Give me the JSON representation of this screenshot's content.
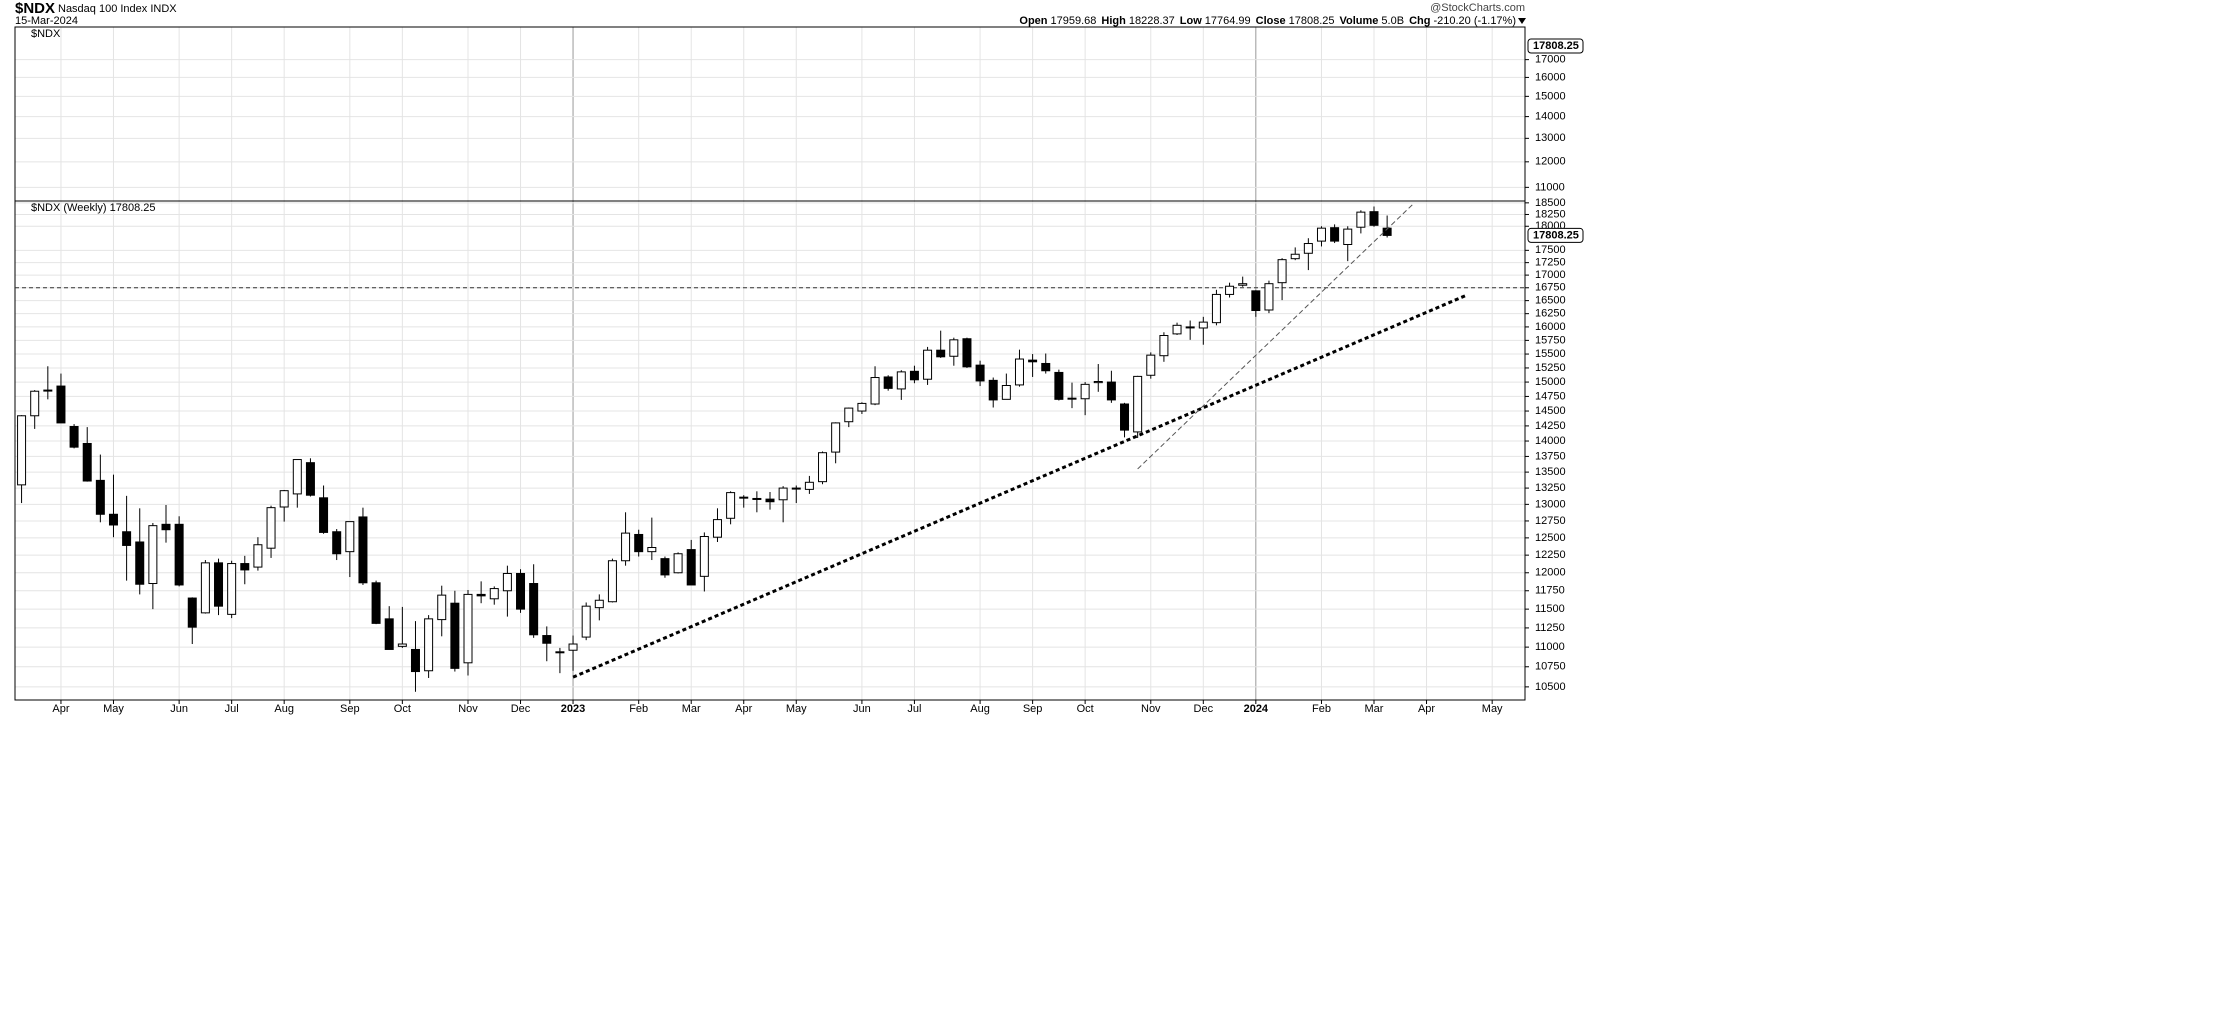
{
  "header": {
    "symbol": "$NDX",
    "name": "Nasdaq 100 Index INDX",
    "date": "15-Mar-2024",
    "source": "@StockCharts.com",
    "quote": [
      {
        "label": "Open",
        "value": "17959.68"
      },
      {
        "label": "High",
        "value": "18228.37"
      },
      {
        "label": "Low",
        "value": "17764.99"
      },
      {
        "label": "Close",
        "value": "17808.25"
      },
      {
        "label": "Volume",
        "value": "5.0B"
      },
      {
        "label": "Chg",
        "value": "-210.20 (-1.17%)"
      }
    ]
  },
  "chart_data": [
    {
      "type": "empty",
      "label": "$NDX",
      "log_scale": true,
      "grid": true,
      "ylim": [
        10500,
        19000
      ],
      "yticks": [
        17000,
        16000,
        15000,
        14000,
        13000,
        12000,
        11000
      ],
      "price_tag": 17808.25
    },
    {
      "type": "candlestick",
      "label": "$NDX (Weekly) 17808.25",
      "log_scale": true,
      "grid": true,
      "up_color": "#ffffff",
      "down_color": "#000000",
      "ylim": [
        10340,
        18540
      ],
      "yticks": [
        18500,
        18250,
        18000,
        17500,
        17250,
        17000,
        16750,
        16500,
        16250,
        16000,
        15750,
        15500,
        15250,
        15000,
        14750,
        14500,
        14250,
        14000,
        13750,
        13500,
        13250,
        13000,
        12750,
        12500,
        12250,
        12000,
        11750,
        11500,
        11250,
        11000,
        10750,
        10500
      ],
      "xlim": [
        -0.5,
        114.5
      ],
      "xticks": [
        {
          "value": 3,
          "label": "Apr"
        },
        {
          "value": 7,
          "label": "May"
        },
        {
          "value": 12,
          "label": "Jun"
        },
        {
          "value": 16,
          "label": "Jul"
        },
        {
          "value": 20,
          "label": "Aug"
        },
        {
          "value": 25,
          "label": "Sep"
        },
        {
          "value": 29,
          "label": "Oct"
        },
        {
          "value": 34,
          "label": "Nov"
        },
        {
          "value": 38,
          "label": "Dec"
        },
        {
          "value": 42,
          "label": "2023"
        },
        {
          "value": 47,
          "label": "Feb"
        },
        {
          "value": 51,
          "label": "Mar"
        },
        {
          "value": 55,
          "label": "Apr"
        },
        {
          "value": 59,
          "label": "May"
        },
        {
          "value": 64,
          "label": "Jun"
        },
        {
          "value": 68,
          "label": "Jul"
        },
        {
          "value": 73,
          "label": "Aug"
        },
        {
          "value": 77,
          "label": "Sep"
        },
        {
          "value": 81,
          "label": "Oct"
        },
        {
          "value": 86,
          "label": "Nov"
        },
        {
          "value": 90,
          "label": "Dec"
        },
        {
          "value": 94,
          "label": "2024"
        },
        {
          "value": 99,
          "label": "Feb"
        },
        {
          "value": 103,
          "label": "Mar"
        },
        {
          "value": 107,
          "label": "Apr"
        },
        {
          "value": 112,
          "label": "May"
        }
      ],
      "open": [
        13300,
        14420,
        14850,
        14930,
        14240,
        13960,
        13370,
        12850,
        12590,
        12440,
        11850,
        12700,
        12700,
        11650,
        11450,
        12140,
        11430,
        12130,
        12080,
        12350,
        12960,
        13160,
        13650,
        13100,
        12590,
        12300,
        12810,
        11860,
        11370,
        11010,
        10970,
        10700,
        11360,
        11580,
        10800,
        11700,
        11640,
        11750,
        11990,
        11850,
        11150,
        10930,
        10960,
        11130,
        11520,
        11600,
        12170,
        12550,
        12300,
        12200,
        12000,
        12330,
        11950,
        12510,
        12790,
        13100,
        13090,
        13080,
        13070,
        13250,
        13230,
        13350,
        13820,
        14320,
        14500,
        14620,
        15090,
        14880,
        15190,
        15050,
        15570,
        15460,
        15780,
        15300,
        15030,
        14700,
        14950,
        15390,
        15330,
        15170,
        14720,
        14710,
        14990,
        15000,
        14620,
        14150,
        15120,
        15470,
        15870,
        16000,
        15980,
        16080,
        16620,
        16800,
        16690,
        16320,
        16850,
        17330,
        17440,
        17690,
        17970,
        17620,
        17980,
        18310,
        17959.68
      ],
      "high": [
        14430,
        14860,
        15280,
        15150,
        14280,
        14230,
        13780,
        13460,
        13130,
        12940,
        12720,
        12990,
        12820,
        11660,
        12180,
        12200,
        12170,
        12240,
        12510,
        12980,
        13220,
        13700,
        13720,
        13290,
        12630,
        12740,
        12950,
        11890,
        11540,
        11530,
        11340,
        11420,
        11820,
        11750,
        11760,
        11880,
        11810,
        12100,
        12050,
        12120,
        11270,
        10990,
        11150,
        11590,
        11700,
        12200,
        12880,
        12620,
        12800,
        12230,
        12290,
        12470,
        12580,
        12940,
        13200,
        13140,
        13200,
        13190,
        13280,
        13290,
        13440,
        13830,
        14310,
        14560,
        14650,
        15280,
        15120,
        15210,
        15290,
        15630,
        15930,
        15800,
        15800,
        15380,
        15080,
        15150,
        15580,
        15500,
        15510,
        15220,
        14990,
        15000,
        15320,
        15200,
        14640,
        15110,
        15530,
        15900,
        16080,
        16120,
        16190,
        16710,
        16850,
        16970,
        16700,
        16890,
        17340,
        17560,
        17750,
        18000,
        18040,
        18000,
        18340,
        18420,
        18228.37
      ],
      "low": [
        13020,
        14200,
        14700,
        14300,
        13880,
        13350,
        12730,
        12510,
        11890,
        11700,
        11500,
        12430,
        11810,
        11040,
        11440,
        11420,
        11380,
        11840,
        12030,
        12210,
        12740,
        12950,
        13120,
        12560,
        12180,
        11940,
        11830,
        11300,
        10970,
        10990,
        10440,
        10610,
        11140,
        10690,
        10640,
        11580,
        11560,
        11400,
        11450,
        11120,
        10820,
        10670,
        10700,
        11090,
        11350,
        11590,
        12100,
        12230,
        12180,
        11930,
        11990,
        11830,
        11740,
        12440,
        12700,
        12950,
        12880,
        12920,
        12730,
        13020,
        13160,
        13310,
        13640,
        14230,
        14450,
        14600,
        14850,
        14690,
        14980,
        14950,
        15430,
        15290,
        15250,
        14930,
        14560,
        14700,
        14920,
        15090,
        15150,
        14680,
        14550,
        14430,
        14830,
        14640,
        14060,
        14050,
        15060,
        15360,
        15850,
        15760,
        15670,
        16030,
        16560,
        16770,
        16190,
        16260,
        16510,
        17300,
        17100,
        17580,
        17650,
        17280,
        17850,
        17990,
        17764.99
      ],
      "close": [
        14420,
        14840,
        14860,
        14300,
        13900,
        13360,
        12850,
        12690,
        12390,
        11840,
        12680,
        12620,
        11830,
        11260,
        12140,
        11540,
        12130,
        12040,
        12400,
        12950,
        13210,
        13700,
        13140,
        12580,
        12270,
        12740,
        11860,
        11310,
        10970,
        11040,
        10690,
        11370,
        11690,
        10730,
        11700,
        11680,
        11780,
        11990,
        11500,
        11160,
        11050,
        10940,
        11040,
        11540,
        11620,
        12170,
        12570,
        12300,
        12360,
        11970,
        12270,
        11830,
        12520,
        12770,
        13180,
        13110,
        13080,
        13040,
        13250,
        13240,
        13340,
        13810,
        14300,
        14550,
        14630,
        15080,
        14890,
        15180,
        15040,
        15570,
        15450,
        15760,
        15270,
        15020,
        14690,
        14940,
        15410,
        15360,
        15200,
        14700,
        14720,
        14960,
        15010,
        14690,
        14180,
        15100,
        15480,
        15840,
        16030,
        16000,
        16090,
        16620,
        16780,
        16830,
        16310,
        16830,
        17310,
        17420,
        17640,
        17960,
        17690,
        17940,
        18300,
        18020,
        17808.25
      ],
      "hlines": [
        {
          "value": 16750,
          "style": "dashed"
        }
      ],
      "trendlines": [
        {
          "x": [
            42,
            110
          ],
          "y": [
            10620,
            16600
          ],
          "style": "dotted"
        },
        {
          "x": [
            85,
            106
          ],
          "y": [
            13550,
            18480
          ],
          "style": "dashed"
        }
      ],
      "price_tag": 17808.25
    }
  ]
}
